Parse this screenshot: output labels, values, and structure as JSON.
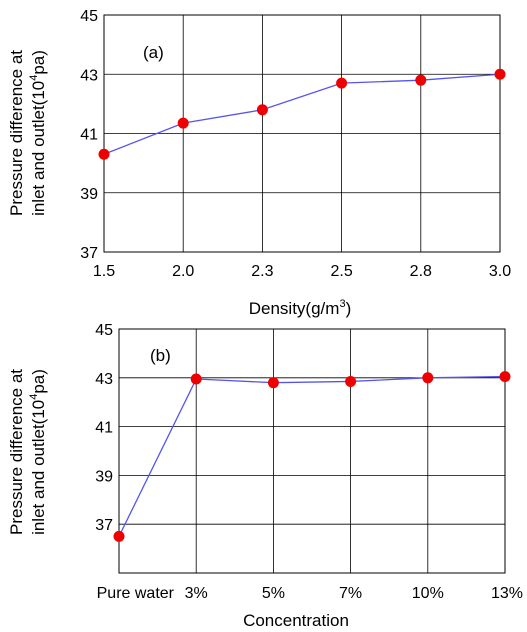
{
  "chart_data": [
    {
      "type": "line",
      "panel_label": "(a)",
      "categories": [
        "1.5",
        "2.0",
        "2.3",
        "2.5",
        "2.8",
        "3.0"
      ],
      "series": [
        {
          "values": [
            40.3,
            41.35,
            41.8,
            42.7,
            42.8,
            43.0
          ]
        }
      ],
      "xlabel": "Density(g/m3)",
      "ylabel_line1": "Pressure difference at",
      "ylabel_line2": "inlet and outlet(10",
      "ylabel_sup": "4",
      "ylabel_tail": "pa)",
      "ylim": [
        37,
        45
      ],
      "yticks": [
        37,
        39,
        41,
        43,
        45
      ],
      "grid": true,
      "line_color": "#5555ee",
      "marker_color": "#ee0000"
    },
    {
      "type": "line",
      "panel_label": "(b)",
      "categories": [
        "Pure water",
        "3%",
        "5%",
        "7%",
        "10%",
        "13%"
      ],
      "series": [
        {
          "values": [
            36.5,
            42.95,
            42.8,
            42.85,
            43.0,
            43.05
          ]
        }
      ],
      "xlabel": "Concentration",
      "ylabel_line1": "Pressure difference at",
      "ylabel_line2": "inlet and outlet(10",
      "ylabel_sup": "4",
      "ylabel_tail": "pa)",
      "ylim": [
        35,
        45
      ],
      "yticks": [
        37,
        39,
        41,
        43,
        45
      ],
      "grid": true,
      "line_color": "#5555ee",
      "marker_color": "#ee0000"
    }
  ]
}
